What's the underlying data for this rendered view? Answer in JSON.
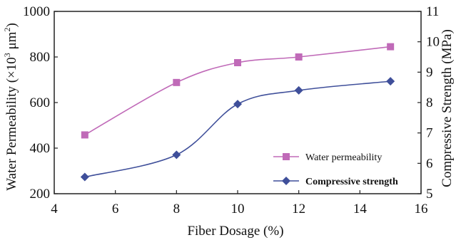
{
  "chart_data": {
    "type": "line",
    "x": [
      5,
      8,
      10,
      12,
      15
    ],
    "xlabel": "Fiber Dosage (%)",
    "xlim": [
      4,
      16
    ],
    "xticks": [
      "4",
      "6",
      "8",
      "10",
      "12",
      "14",
      "16"
    ],
    "ylabel_left_prefix": "Water Permeability (×10",
    "ylabel_left_sup1": "3",
    "ylabel_left_mid": " μm",
    "ylabel_left_sup2": "2",
    "ylabel_left_suffix": ")",
    "ylim_left": [
      200,
      1000
    ],
    "yticks_left": [
      "200",
      "400",
      "600",
      "800",
      "1000"
    ],
    "ylabel_right": "Compressive Strength (MPa)",
    "ylim_right": [
      5,
      11
    ],
    "yticks_right": [
      "5",
      "6",
      "7",
      "8",
      "9",
      "10",
      "11"
    ],
    "grid": false,
    "legend_position": "bottom-right",
    "series": [
      {
        "name": "Water permeability",
        "axis": "left",
        "marker": "square",
        "color": "#c06ab8",
        "values": [
          458,
          688,
          775,
          800,
          845
        ]
      },
      {
        "name": "Compressive strength",
        "axis": "right",
        "marker": "diamond",
        "color": "#3f4f9a",
        "values": [
          5.55,
          6.28,
          7.95,
          8.4,
          8.7
        ]
      }
    ]
  }
}
